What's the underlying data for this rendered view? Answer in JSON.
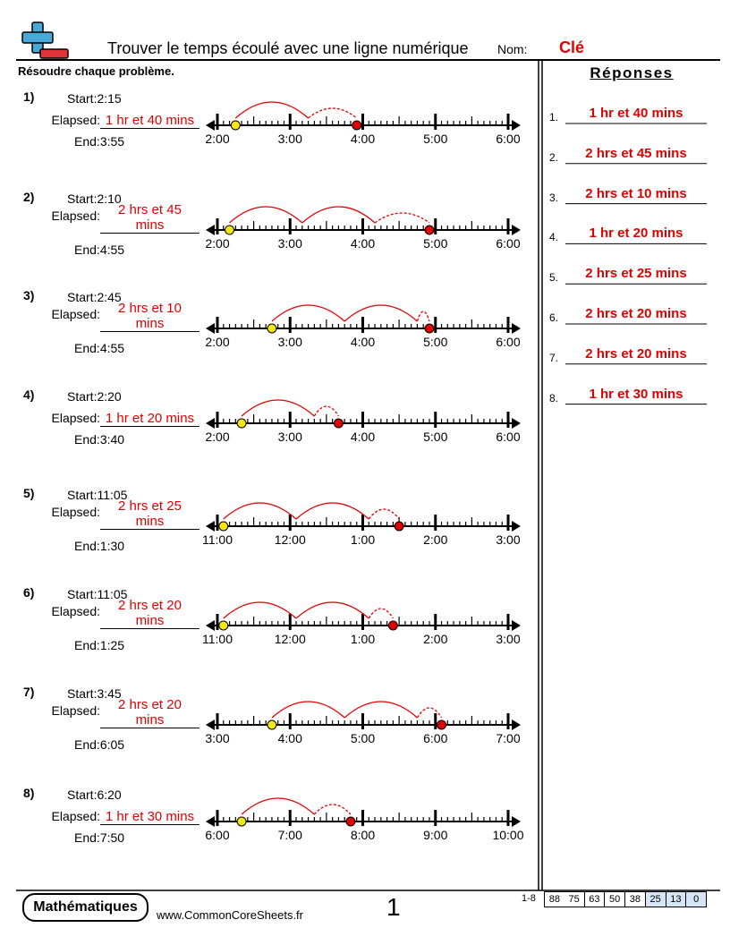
{
  "header": {
    "title": "Trouver le temps écoulé avec une ligne numérique",
    "name_label": "Nom:",
    "name": "Clé"
  },
  "instructions": "Résoudre chaque problème.",
  "problems": [
    {
      "number": "1)",
      "start_label": "Start:",
      "start": "2:15",
      "elapsed_label": "Elapsed:",
      "elapsed": "1 hr et 40 mins",
      "end_label": "End:",
      "end": "3:55",
      "ticks": [
        "2:00",
        "3:00",
        "4:00",
        "5:00",
        "6:00"
      ]
    },
    {
      "number": "2)",
      "start_label": "Start:",
      "start": "2:10",
      "elapsed_label": "Elapsed:",
      "elapsed": "2 hrs et 45 mins",
      "end_label": "End:",
      "end": "4:55",
      "ticks": [
        "2:00",
        "3:00",
        "4:00",
        "5:00",
        "6:00"
      ]
    },
    {
      "number": "3)",
      "start_label": "Start:",
      "start": "2:45",
      "elapsed_label": "Elapsed:",
      "elapsed": "2 hrs et 10 mins",
      "end_label": "End:",
      "end": "4:55",
      "ticks": [
        "2:00",
        "3:00",
        "4:00",
        "5:00",
        "6:00"
      ]
    },
    {
      "number": "4)",
      "start_label": "Start:",
      "start": "2:20",
      "elapsed_label": "Elapsed:",
      "elapsed": "1 hr et 20 mins",
      "end_label": "End:",
      "end": "3:40",
      "ticks": [
        "2:00",
        "3:00",
        "4:00",
        "5:00",
        "6:00"
      ]
    },
    {
      "number": "5)",
      "start_label": "Start:",
      "start": "11:05",
      "elapsed_label": "Elapsed:",
      "elapsed": "2 hrs et 25 mins",
      "end_label": "End:",
      "end": "1:30",
      "ticks": [
        "11:00",
        "12:00",
        "1:00",
        "2:00",
        "3:00"
      ]
    },
    {
      "number": "6)",
      "start_label": "Start:",
      "start": "11:05",
      "elapsed_label": "Elapsed:",
      "elapsed": "2 hrs et 20 mins",
      "end_label": "End:",
      "end": "1:25",
      "ticks": [
        "11:00",
        "12:00",
        "1:00",
        "2:00",
        "3:00"
      ]
    },
    {
      "number": "7)",
      "start_label": "Start:",
      "start": "3:45",
      "elapsed_label": "Elapsed:",
      "elapsed": "2 hrs et 20 mins",
      "end_label": "End:",
      "end": "6:05",
      "ticks": [
        "3:00",
        "4:00",
        "5:00",
        "6:00",
        "7:00"
      ]
    },
    {
      "number": "8)",
      "start_label": "Start:",
      "start": "6:20",
      "elapsed_label": "Elapsed:",
      "elapsed": "1 hr et 30 mins",
      "end_label": "End:",
      "end": "7:50",
      "ticks": [
        "6:00",
        "7:00",
        "8:00",
        "9:00",
        "10:00"
      ]
    }
  ],
  "answers_title": "Réponses",
  "answers": [
    {
      "number": "1.",
      "text": "1 hr et 40 mins"
    },
    {
      "number": "2.",
      "text": "2 hrs et 45 mins"
    },
    {
      "number": "3.",
      "text": "2 hrs et 10 mins"
    },
    {
      "number": "4.",
      "text": "1 hr et 20 mins"
    },
    {
      "number": "5.",
      "text": "2 hrs et 25 mins"
    },
    {
      "number": "6.",
      "text": "2 hrs et 20 mins"
    },
    {
      "number": "7.",
      "text": "2 hrs et 20 mins"
    },
    {
      "number": "8.",
      "text": "1 hr et 30 mins"
    }
  ],
  "footer": {
    "brand": "Mathématiques",
    "url": "www.CommonCoreSheets.fr",
    "page": "1",
    "range": "1-8",
    "scores": [
      "88",
      "75",
      "63",
      "50",
      "38",
      "25",
      "13",
      "0"
    ]
  }
}
